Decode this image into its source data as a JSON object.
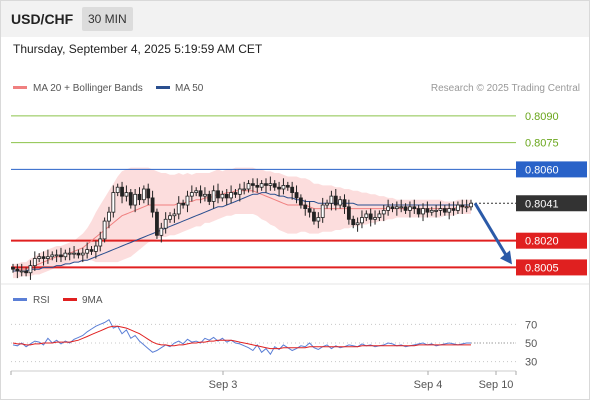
{
  "header": {
    "pair": "USD/CHF",
    "timeframe": "30 MIN",
    "datetime": "Thursday, September 4, 2025 5:19:59 AM CET"
  },
  "legend": {
    "ma20": {
      "label": "MA 20 + Bollinger Bands",
      "color": "#f08080"
    },
    "ma50": {
      "label": "MA 50",
      "color": "#2a4f8f"
    },
    "credit": "Research © 2025 Trading Central"
  },
  "rsi_legend": {
    "rsi": {
      "label": "RSI",
      "color": "#5b7fd6"
    },
    "ma9": {
      "label": "9MA",
      "color": "#e02020"
    }
  },
  "chart_data": {
    "type": "line",
    "title": "USD/CHF",
    "ylim": [
      0.79985,
      0.80995
    ],
    "x_ticks": [
      "Sep 3",
      "Sep 4",
      "Sep 10"
    ],
    "levels": [
      {
        "label": "0.8090",
        "value": 0.809,
        "kind": "target",
        "color": "#8bc34a"
      },
      {
        "label": "0.8075",
        "value": 0.8075,
        "kind": "target",
        "color": "#8bc34a"
      },
      {
        "label": "0.8060",
        "value": 0.806,
        "kind": "resistance",
        "color": "#2962c8"
      },
      {
        "label": "0.8041",
        "value": 0.8041,
        "kind": "current",
        "color": "#333333"
      },
      {
        "label": "0.8020",
        "value": 0.802,
        "kind": "support",
        "color": "#e02020"
      },
      {
        "label": "0.8005",
        "value": 0.8005,
        "kind": "support",
        "color": "#e02020"
      }
    ],
    "candles_close": [
      0.8004,
      0.8003,
      0.8003,
      0.8002,
      0.8006,
      0.801,
      0.8011,
      0.801,
      0.8011,
      0.8012,
      0.8012,
      0.8011,
      0.8013,
      0.8013,
      0.8013,
      0.8012,
      0.8013,
      0.8015,
      0.8014,
      0.8017,
      0.8021,
      0.8031,
      0.8036,
      0.8047,
      0.805,
      0.8045,
      0.8047,
      0.804,
      0.8046,
      0.8043,
      0.8049,
      0.8044,
      0.8036,
      0.8023,
      0.8027,
      0.8032,
      0.8034,
      0.8035,
      0.8041,
      0.804,
      0.8045,
      0.8047,
      0.8048,
      0.8045,
      0.8046,
      0.8042,
      0.8048,
      0.8044,
      0.8046,
      0.8044,
      0.8047,
      0.8046,
      0.8049,
      0.8049,
      0.8052,
      0.8051,
      0.805,
      0.8052,
      0.8051,
      0.8052,
      0.805,
      0.8049,
      0.8051,
      0.805,
      0.8047,
      0.8044,
      0.804,
      0.8038,
      0.8036,
      0.8031,
      0.8033,
      0.804,
      0.8041,
      0.8045,
      0.804,
      0.8043,
      0.8039,
      0.8032,
      0.8029,
      0.803,
      0.8033,
      0.8035,
      0.8032,
      0.8033,
      0.8035,
      0.8037,
      0.8039,
      0.8038,
      0.8039,
      0.8039,
      0.8037,
      0.8039,
      0.8038,
      0.8035,
      0.8038,
      0.8036,
      0.8037,
      0.8037,
      0.8038,
      0.8036,
      0.8038,
      0.8037,
      0.804,
      0.8039,
      0.8039,
      0.8041
    ],
    "ma20": [
      0.8003,
      0.8003,
      0.8004,
      0.8004,
      0.8005,
      0.8006,
      0.8007,
      0.8008,
      0.8009,
      0.801,
      0.8011,
      0.8011,
      0.8012,
      0.8013,
      0.8014,
      0.8015,
      0.8016,
      0.8018,
      0.802,
      0.8022,
      0.8024,
      0.8026,
      0.8028,
      0.803,
      0.8032,
      0.8034,
      0.8035,
      0.8036,
      0.8037,
      0.8038,
      0.8039,
      0.804,
      0.804,
      0.804,
      0.804,
      0.804,
      0.804,
      0.804,
      0.8041,
      0.8041,
      0.8042,
      0.8042,
      0.8043,
      0.8043,
      0.8044,
      0.8044,
      0.8045,
      0.8046,
      0.8046,
      0.8047,
      0.8047,
      0.8048,
      0.8048,
      0.8048,
      0.8048,
      0.8048,
      0.8047,
      0.8046,
      0.8045,
      0.8044,
      0.8043,
      0.8042,
      0.8041,
      0.804,
      0.804,
      0.804,
      0.804,
      0.804,
      0.8039,
      0.8038,
      0.8038,
      0.8038,
      0.8038,
      0.8038,
      0.8038,
      0.8038,
      0.8038,
      0.8038,
      0.8038,
      0.8038,
      0.8038,
      0.8038,
      0.8038,
      0.8038,
      0.8038,
      0.8038,
      0.8038,
      0.8038,
      0.8038,
      0.8038,
      0.8038,
      0.8038,
      0.8038,
      0.8038,
      0.8038,
      0.8038,
      0.8038,
      0.8038,
      0.8038,
      0.8038,
      0.8038,
      0.8038,
      0.8039,
      0.8039,
      0.8039,
      0.8039
    ],
    "ma50": [
      0.8003,
      0.8003,
      0.8003,
      0.8003,
      0.8004,
      0.8004,
      0.8004,
      0.8005,
      0.8005,
      0.8005,
      0.8006,
      0.8006,
      0.8007,
      0.8007,
      0.8008,
      0.8008,
      0.8009,
      0.8009,
      0.801,
      0.8011,
      0.8012,
      0.8013,
      0.8014,
      0.8015,
      0.8016,
      0.8017,
      0.8018,
      0.8019,
      0.802,
      0.8021,
      0.8022,
      0.8023,
      0.8024,
      0.8025,
      0.8026,
      0.8027,
      0.8028,
      0.8029,
      0.803,
      0.8031,
      0.8032,
      0.8033,
      0.8034,
      0.8035,
      0.8036,
      0.8037,
      0.8038,
      0.8039,
      0.8039,
      0.804,
      0.8041,
      0.8042,
      0.8043,
      0.8044,
      0.8045,
      0.8046,
      0.8046,
      0.8047,
      0.8047,
      0.8046,
      0.8046,
      0.8045,
      0.8045,
      0.8044,
      0.8044,
      0.8043,
      0.8043,
      0.8042,
      0.8042,
      0.8042,
      0.8041,
      0.8041,
      0.8041,
      0.8041,
      0.8041,
      0.8041,
      0.8041,
      0.8041,
      0.8041,
      0.804,
      0.804,
      0.804,
      0.804,
      0.804,
      0.804,
      0.804,
      0.804,
      0.804,
      0.804,
      0.804,
      0.804,
      0.804,
      0.804,
      0.804,
      0.804,
      0.804,
      0.804,
      0.804,
      0.804,
      0.804,
      0.804,
      0.804,
      0.804,
      0.804,
      0.804,
      0.804
    ],
    "bollinger_width": [
      0.0004,
      0.0004,
      0.0004,
      0.0004,
      0.0005,
      0.0005,
      0.0006,
      0.0006,
      0.0006,
      0.0006,
      0.0006,
      0.0006,
      0.0006,
      0.0006,
      0.0006,
      0.0007,
      0.0008,
      0.0009,
      0.0011,
      0.0014,
      0.0016,
      0.0018,
      0.002,
      0.0022,
      0.0024,
      0.0025,
      0.0025,
      0.0025,
      0.0024,
      0.0023,
      0.0022,
      0.0021,
      0.002,
      0.0019,
      0.0018,
      0.0018,
      0.0017,
      0.0017,
      0.0017,
      0.0016,
      0.0016,
      0.0015,
      0.0015,
      0.0015,
      0.0014,
      0.0014,
      0.0014,
      0.0014,
      0.0013,
      0.0013,
      0.0013,
      0.0013,
      0.0013,
      0.0013,
      0.0013,
      0.0013,
      0.0013,
      0.0014,
      0.0014,
      0.0015,
      0.0015,
      0.0016,
      0.0016,
      0.0016,
      0.0016,
      0.0016,
      0.0015,
      0.0015,
      0.0015,
      0.0014,
      0.0014,
      0.0013,
      0.0013,
      0.0013,
      0.0012,
      0.0012,
      0.0011,
      0.0011,
      0.001,
      0.001,
      0.0009,
      0.0009,
      0.0008,
      0.0008,
      0.0007,
      0.0007,
      0.0006,
      0.0006,
      0.0005,
      0.0005,
      0.0005,
      0.0005,
      0.0005,
      0.0005,
      0.0005,
      0.0005,
      0.0005,
      0.0005,
      0.0005,
      0.0004,
      0.0004,
      0.0004,
      0.0004,
      0.0004,
      0.0004,
      0.0004
    ],
    "forecast": {
      "from": 0.8041,
      "to": 0.8005
    },
    "rsi": {
      "ylim": [
        20,
        80
      ],
      "ticks": [
        70,
        50,
        30
      ],
      "rsi_values": [
        48,
        47,
        50,
        46,
        49,
        52,
        51,
        48,
        55,
        50,
        53,
        49,
        52,
        50,
        54,
        56,
        58,
        62,
        65,
        68,
        70,
        72,
        75,
        66,
        68,
        60,
        64,
        55,
        58,
        52,
        48,
        44,
        40,
        42,
        45,
        48,
        46,
        50,
        52,
        49,
        54,
        51,
        52,
        50,
        55,
        53,
        56,
        52,
        55,
        51,
        53,
        50,
        49,
        47,
        45,
        42,
        48,
        40,
        44,
        38,
        46,
        43,
        48,
        45,
        42,
        44,
        47,
        46,
        50,
        45,
        43,
        46,
        48,
        44,
        47,
        45,
        46,
        48,
        47,
        46,
        49,
        47,
        48,
        46,
        47,
        48,
        50,
        49,
        47,
        48,
        46,
        47,
        48,
        49,
        50,
        48,
        49,
        47,
        48,
        49,
        50,
        49,
        48,
        49,
        50,
        50
      ],
      "ma9_values": [
        50,
        49,
        49,
        48,
        48,
        49,
        49,
        50,
        50,
        50,
        51,
        51,
        51,
        51,
        52,
        53,
        55,
        57,
        59,
        61,
        63,
        65,
        67,
        68,
        68,
        67,
        66,
        64,
        62,
        60,
        57,
        54,
        51,
        49,
        48,
        48,
        47,
        47,
        48,
        48,
        49,
        50,
        50,
        51,
        51,
        52,
        52,
        53,
        53,
        53,
        53,
        52,
        51,
        50,
        49,
        48,
        47,
        46,
        45,
        44,
        44,
        44,
        45,
        45,
        45,
        45,
        45,
        45,
        46,
        46,
        46,
        46,
        46,
        46,
        46,
        46,
        46,
        46,
        46,
        46,
        47,
        47,
        47,
        47,
        47,
        47,
        47,
        47,
        47,
        47,
        47,
        47,
        47,
        48,
        48,
        48,
        48,
        48,
        48,
        48,
        48,
        48,
        48,
        48,
        48,
        48
      ]
    }
  }
}
